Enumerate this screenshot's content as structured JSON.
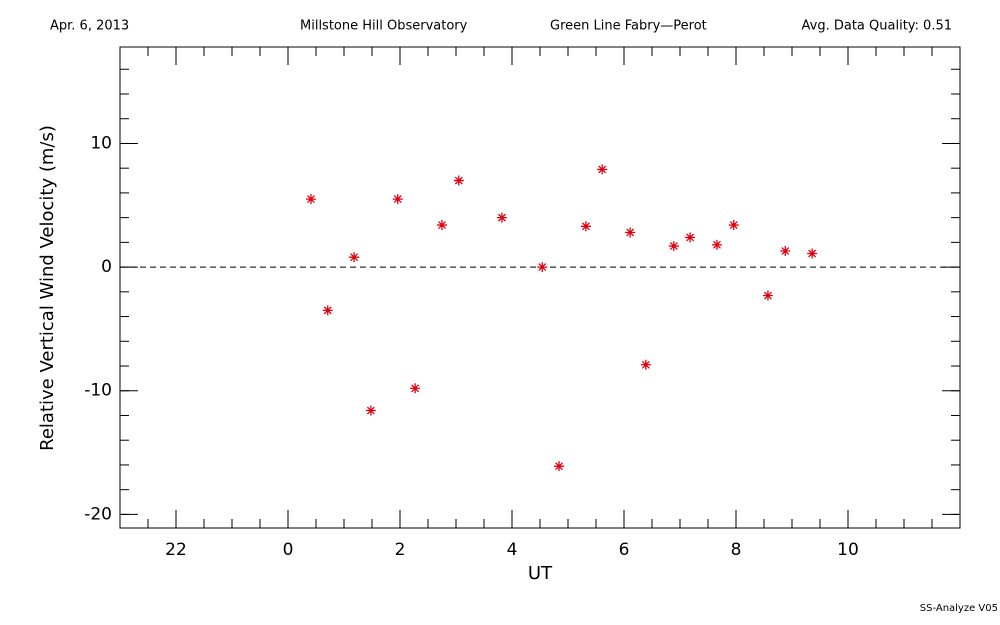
{
  "chart_data": {
    "type": "scatter",
    "header": [
      "Apr. 6, 2013",
      "Millstone Hill Observatory",
      "Green Line Fabry—Perot",
      "Avg. Data Quality: 0.51"
    ],
    "footer": "SS-Analyze V05",
    "xlabel": "UT",
    "ylabel": "Relative Vertical Wind Velocity (m/s)",
    "x": [
      0.41,
      0.71,
      1.18,
      1.48,
      1.96,
      2.27,
      2.75,
      3.05,
      3.82,
      4.54,
      4.84,
      5.32,
      5.61,
      6.11,
      6.39,
      6.89,
      7.18,
      7.66,
      7.96,
      8.57,
      8.88,
      9.36
    ],
    "values": [
      5.5,
      -3.5,
      0.8,
      -11.6,
      5.5,
      -9.8,
      3.4,
      7.0,
      4.0,
      0.0,
      -16.1,
      3.3,
      7.9,
      2.8,
      -7.9,
      1.7,
      2.4,
      1.8,
      3.4,
      -2.3,
      1.3,
      1.1
    ],
    "color": "#e0000f",
    "xlim": [
      -3,
      12
    ],
    "ylim": [
      -21.1,
      17.8
    ],
    "xticks": [
      {
        "value": -2,
        "label": "22"
      },
      0,
      2,
      4,
      6,
      8,
      10
    ],
    "yticks": [
      -20,
      -10,
      0,
      10
    ],
    "xminor": 4,
    "yminor": 5,
    "hline": 0
  }
}
